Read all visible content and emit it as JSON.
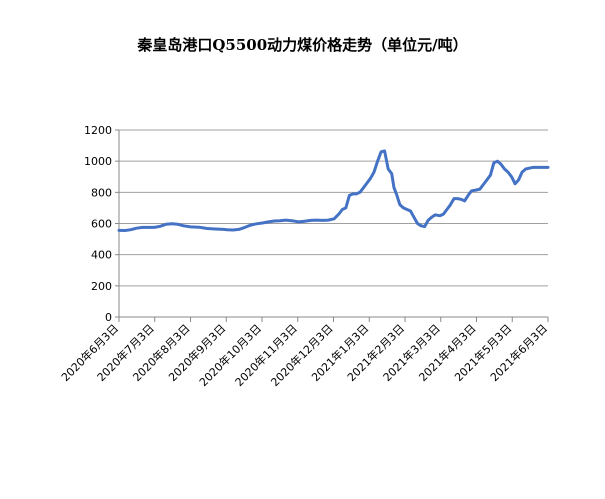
{
  "chart_data": {
    "type": "line",
    "title": "秦皇岛港口Q5500动力煤价格走势（单位元/吨）",
    "xlabel": "",
    "ylabel": "",
    "ylim": [
      0,
      1200
    ],
    "yticks": [
      0,
      200,
      400,
      600,
      800,
      1000,
      1200
    ],
    "grid": true,
    "legend": "none",
    "line_color": "#4472C4",
    "xticks": [
      "2020年6月3日",
      "2020年7月3日",
      "2020年8月3日",
      "2020年9月3日",
      "2020年10月3日",
      "2020年11月3日",
      "2020年12月3日",
      "2021年1月3日",
      "2021年2月3日",
      "2021年3月3日",
      "2021年4月3日",
      "2021年5月3日",
      "2021年6月3日"
    ],
    "series": [
      {
        "x": [
          "2020-06-03",
          "2020-06-08",
          "2020-06-13",
          "2020-06-18",
          "2020-06-23",
          "2020-06-28",
          "2020-07-03",
          "2020-07-08",
          "2020-07-13",
          "2020-07-18",
          "2020-07-23",
          "2020-07-28",
          "2020-08-03",
          "2020-08-10",
          "2020-08-17",
          "2020-08-24",
          "2020-08-31",
          "2020-09-03",
          "2020-09-08",
          "2020-09-13",
          "2020-09-18",
          "2020-09-23",
          "2020-09-28",
          "2020-10-03",
          "2020-10-08",
          "2020-10-13",
          "2020-10-18",
          "2020-10-23",
          "2020-10-28",
          "2020-11-03",
          "2020-11-08",
          "2020-11-13",
          "2020-11-18",
          "2020-11-23",
          "2020-11-28",
          "2020-12-03",
          "2020-12-07",
          "2020-12-10",
          "2020-12-13",
          "2020-12-16",
          "2020-12-19",
          "2020-12-22",
          "2020-12-25",
          "2020-12-28",
          "2020-12-31",
          "2021-01-03",
          "2021-01-06",
          "2021-01-09",
          "2021-01-12",
          "2021-01-15",
          "2021-01-18",
          "2021-01-21",
          "2021-01-23",
          "2021-01-25",
          "2021-01-28",
          "2021-01-31",
          "2021-02-03",
          "2021-02-06",
          "2021-02-09",
          "2021-02-12",
          "2021-02-15",
          "2021-02-18",
          "2021-02-21",
          "2021-02-24",
          "2021-02-27",
          "2021-03-03",
          "2021-03-06",
          "2021-03-09",
          "2021-03-12",
          "2021-03-15",
          "2021-03-18",
          "2021-03-21",
          "2021-03-24",
          "2021-03-27",
          "2021-03-30",
          "2021-04-03",
          "2021-04-06",
          "2021-04-09",
          "2021-04-12",
          "2021-04-15",
          "2021-04-18",
          "2021-04-21",
          "2021-04-24",
          "2021-04-27",
          "2021-04-30",
          "2021-05-03",
          "2021-05-06",
          "2021-05-09",
          "2021-05-12",
          "2021-05-15",
          "2021-05-18",
          "2021-05-21",
          "2021-05-24",
          "2021-05-27",
          "2021-05-30",
          "2021-06-03"
        ],
        "y": [
          556,
          555,
          560,
          570,
          575,
          575,
          575,
          582,
          595,
          598,
          595,
          585,
          578,
          576,
          568,
          565,
          562,
          560,
          558,
          562,
          575,
          590,
          598,
          603,
          610,
          616,
          618,
          622,
          618,
          610,
          615,
          620,
          622,
          620,
          622,
          630,
          660,
          690,
          700,
          780,
          790,
          790,
          800,
          830,
          860,
          890,
          930,
          1000,
          1060,
          1065,
          950,
          920,
          830,
          790,
          720,
          700,
          690,
          680,
          640,
          600,
          585,
          580,
          620,
          640,
          655,
          650,
          660,
          690,
          720,
          760,
          760,
          755,
          745,
          780,
          810,
          815,
          820,
          850,
          880,
          910,
          990,
          1000,
          980,
          950,
          930,
          900,
          855,
          880,
          930,
          950,
          955,
          960,
          960,
          960,
          960,
          960
        ]
      }
    ]
  }
}
